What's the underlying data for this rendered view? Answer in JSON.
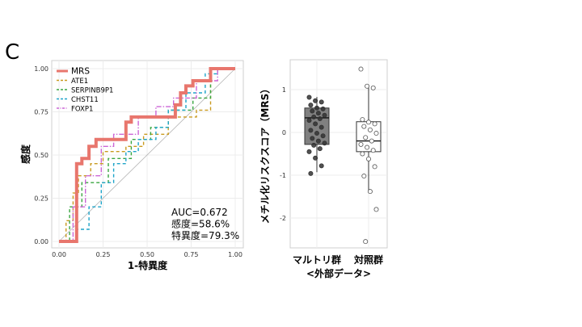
{
  "panel_label": "C",
  "chart_data": [
    {
      "type": "line",
      "subtype": "roc",
      "title": "",
      "xlabel": "1-特異度",
      "ylabel": "感度",
      "xlim": [
        0,
        1
      ],
      "ylim": [
        0,
        1
      ],
      "xticks": [
        "0.00",
        "0.25",
        "0.50",
        "0.75",
        "1.00"
      ],
      "yticks": [
        "0.00",
        "0.25",
        "0.50",
        "0.75",
        "1.00"
      ],
      "grid": true,
      "legend_position": "top-left",
      "annotations": [
        "AUC=0.672",
        "感度=58.6%",
        "特異度=79.3%"
      ],
      "series": [
        {
          "name": "MRS",
          "color": "#e8766d",
          "dash": "solid",
          "x": [
            0,
            0.1,
            0.1,
            0.13,
            0.13,
            0.17,
            0.17,
            0.21,
            0.21,
            0.38,
            0.38,
            0.41,
            0.41,
            0.66,
            0.66,
            0.69,
            0.69,
            0.72,
            0.72,
            0.76,
            0.76,
            0.86,
            0.86,
            1.0
          ],
          "y": [
            0,
            0,
            0.45,
            0.45,
            0.48,
            0.48,
            0.55,
            0.55,
            0.59,
            0.59,
            0.69,
            0.69,
            0.72,
            0.72,
            0.79,
            0.79,
            0.86,
            0.86,
            0.9,
            0.9,
            0.93,
            0.93,
            1.0,
            1.0
          ]
        },
        {
          "name": "ATE1",
          "color": "#c99a1f",
          "dash": "dashed",
          "x": [
            0,
            0.04,
            0.04,
            0.08,
            0.08,
            0.11,
            0.11,
            0.18,
            0.18,
            0.25,
            0.25,
            0.38,
            0.38,
            0.48,
            0.48,
            0.62,
            0.62,
            0.78,
            0.78,
            0.86,
            0.86,
            1.0
          ],
          "y": [
            0,
            0,
            0.12,
            0.12,
            0.28,
            0.28,
            0.38,
            0.38,
            0.45,
            0.45,
            0.52,
            0.52,
            0.55,
            0.55,
            0.62,
            0.62,
            0.72,
            0.72,
            0.76,
            0.76,
            1.0,
            1.0
          ]
        },
        {
          "name": "SERPINB9P1",
          "color": "#3aa640",
          "dash": "dashed",
          "x": [
            0,
            0.06,
            0.06,
            0.13,
            0.13,
            0.28,
            0.28,
            0.41,
            0.41,
            0.52,
            0.52,
            0.62,
            0.62,
            0.76,
            0.76,
            0.86,
            0.86,
            1.0
          ],
          "y": [
            0,
            0,
            0.2,
            0.2,
            0.34,
            0.34,
            0.48,
            0.48,
            0.59,
            0.59,
            0.66,
            0.66,
            0.76,
            0.76,
            0.83,
            0.83,
            1.0,
            1.0
          ]
        },
        {
          "name": "CHST11",
          "color": "#1ea4c9",
          "dash": "dashed",
          "x": [
            0,
            0.1,
            0.1,
            0.17,
            0.17,
            0.24,
            0.24,
            0.31,
            0.31,
            0.38,
            0.38,
            0.45,
            0.45,
            0.55,
            0.55,
            0.62,
            0.62,
            0.72,
            0.72,
            0.83,
            0.83,
            0.9,
            0.9,
            1.0
          ],
          "y": [
            0,
            0,
            0.07,
            0.07,
            0.2,
            0.2,
            0.34,
            0.34,
            0.45,
            0.45,
            0.52,
            0.52,
            0.59,
            0.59,
            0.66,
            0.66,
            0.76,
            0.76,
            0.86,
            0.86,
            0.97,
            0.97,
            1.0,
            1.0
          ]
        },
        {
          "name": "FOXP1",
          "color": "#cc66d6",
          "dash": "dashdot",
          "x": [
            0,
            0.08,
            0.08,
            0.15,
            0.15,
            0.24,
            0.24,
            0.31,
            0.31,
            0.45,
            0.45,
            0.55,
            0.55,
            0.65,
            0.65,
            0.78,
            0.78,
            0.9,
            0.9,
            1.0
          ],
          "y": [
            0,
            0,
            0.2,
            0.2,
            0.38,
            0.38,
            0.55,
            0.55,
            0.62,
            0.62,
            0.72,
            0.72,
            0.78,
            0.78,
            0.83,
            0.83,
            0.93,
            0.93,
            1.0,
            1.0
          ]
        }
      ]
    },
    {
      "type": "box",
      "title": "",
      "ylabel": "メチル化リスクスコア（MRS）",
      "xlabel": "<外部データ>",
      "ylim": [
        -2.7,
        1.7
      ],
      "yticks": [
        1,
        0,
        -1,
        -2
      ],
      "grid": true,
      "categories": [
        "マルトリ群",
        "対照群"
      ],
      "groups": [
        {
          "name": "マルトリ群",
          "fill": "#808080",
          "point_color": "#333333",
          "point_fill": "#333333",
          "q1": -0.28,
          "median": 0.34,
          "q3": 0.57,
          "whisker_low": -0.93,
          "whisker_high": 0.83,
          "points": [
            0.82,
            0.74,
            0.71,
            0.64,
            0.57,
            0.55,
            0.5,
            0.45,
            0.4,
            0.36,
            0.32,
            0.28,
            0.2,
            0.12,
            0.05,
            -0.02,
            -0.08,
            -0.14,
            -0.2,
            -0.25,
            -0.3,
            -0.38,
            -0.45,
            -0.6,
            -0.78,
            -0.96
          ]
        },
        {
          "name": "対照群",
          "fill": "#ffffff",
          "point_color": "#555555",
          "point_fill": "#ffffff",
          "q1": -0.45,
          "median": -0.2,
          "q3": 0.25,
          "whisker_low": -1.35,
          "whisker_high": 1.05,
          "points": [
            1.48,
            1.08,
            1.04,
            0.3,
            0.24,
            0.2,
            0.14,
            0.06,
            -0.02,
            -0.12,
            -0.2,
            -0.28,
            -0.35,
            -0.42,
            -0.5,
            -0.62,
            -0.8,
            -1.02,
            -1.38,
            -1.8,
            -2.55
          ]
        }
      ]
    }
  ]
}
